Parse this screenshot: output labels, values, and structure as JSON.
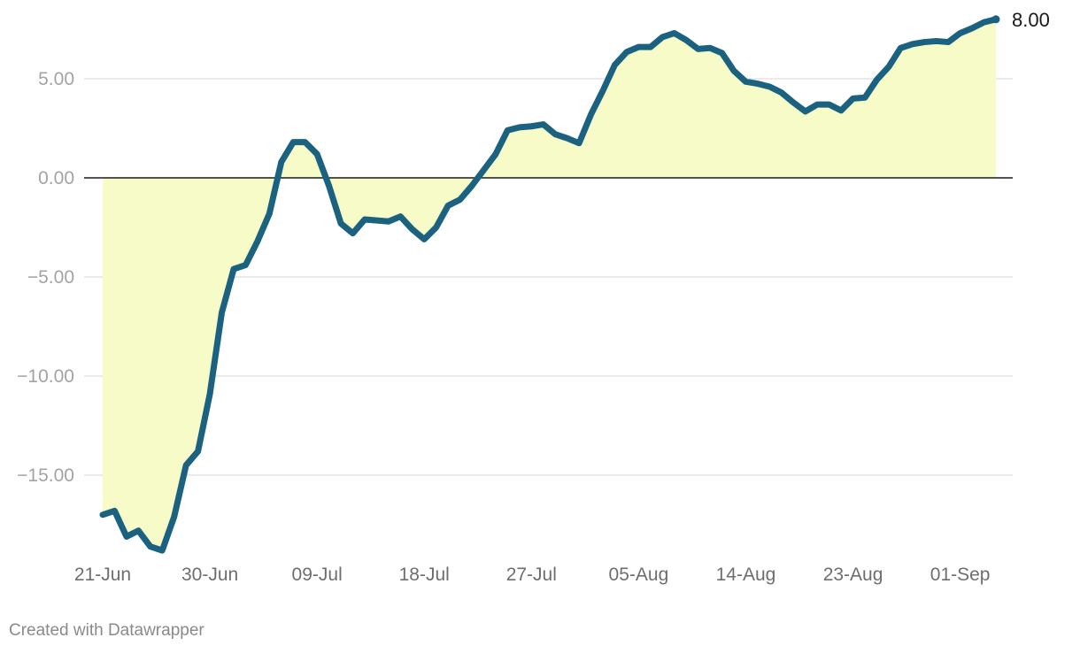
{
  "footer": {
    "credit": "Created with Datawrapper"
  },
  "chart_data": {
    "type": "area",
    "title": "",
    "xlabel": "",
    "ylabel": "",
    "x_start": "21-Jun",
    "x_ticks": [
      "21-Jun",
      "30-Jun",
      "09-Jul",
      "18-Jul",
      "27-Jul",
      "05-Aug",
      "14-Aug",
      "23-Aug",
      "01-Sep"
    ],
    "y_ticks": [
      5,
      0,
      -5,
      -10,
      -15
    ],
    "y_tick_labels": [
      "5.00",
      "0.00",
      "−5.00",
      "−10.00",
      "−15.00"
    ],
    "ylim": [
      -18.9,
      8.3
    ],
    "grid": true,
    "end_label": "8.00",
    "colors": {
      "line": "#1b6280",
      "area": "#f6fbc8",
      "gridline": "#e3e3e3",
      "zero_line": "#1a1a1a"
    },
    "series": [
      {
        "values": [
          -17.0,
          -16.8,
          -18.1,
          -17.8,
          -18.6,
          -18.8,
          -17.1,
          -14.5,
          -13.8,
          -10.9,
          -6.8,
          -4.6,
          -4.4,
          -3.2,
          -1.8,
          0.8,
          1.8,
          1.8,
          1.2,
          -0.4,
          -2.3,
          -2.8,
          -2.1,
          -2.15,
          -2.2,
          -1.95,
          -2.6,
          -3.1,
          -2.5,
          -1.4,
          -1.1,
          -0.4,
          0.4,
          1.2,
          2.4,
          2.55,
          2.6,
          2.7,
          2.2,
          2.0,
          1.75,
          3.2,
          4.4,
          5.7,
          6.35,
          6.6,
          6.6,
          7.1,
          7.3,
          6.95,
          6.5,
          6.55,
          6.3,
          5.4,
          4.85,
          4.75,
          4.6,
          4.3,
          3.8,
          3.35,
          3.7,
          3.7,
          3.4,
          4.0,
          4.05,
          4.95,
          5.6,
          6.55,
          6.75,
          6.85,
          6.9,
          6.85,
          7.3,
          7.55,
          7.85,
          8.0
        ]
      }
    ]
  }
}
